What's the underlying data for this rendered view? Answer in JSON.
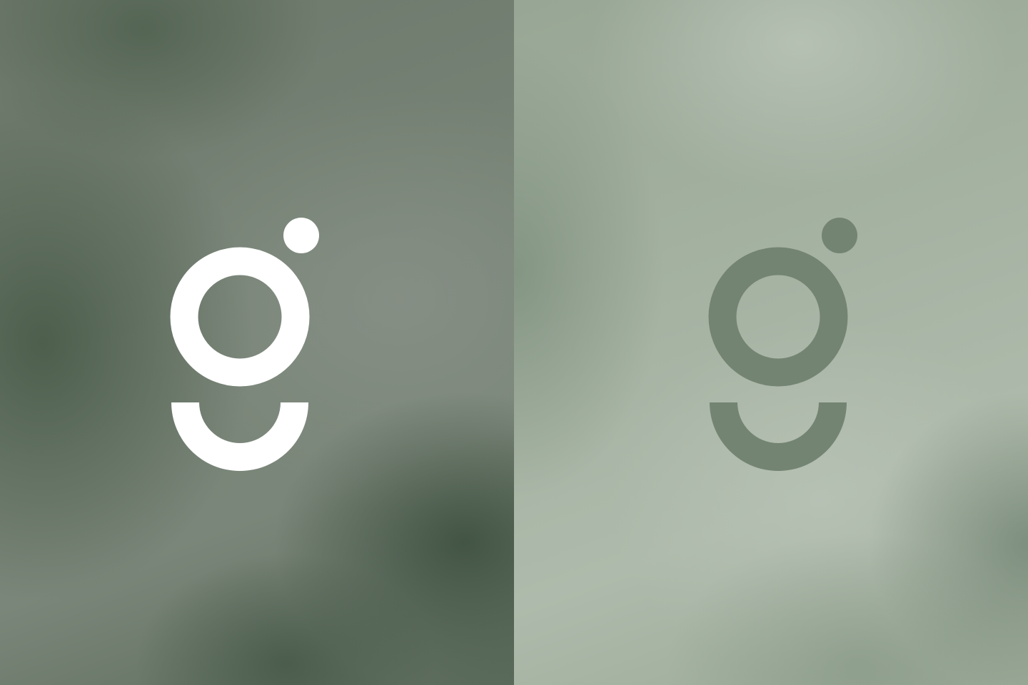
{
  "panels": [
    {
      "name": "dark-variant",
      "logo": {
        "glyph": "g",
        "color": "#ffffff"
      },
      "background_color": "#76826f"
    },
    {
      "name": "light-variant",
      "logo": {
        "glyph": "g",
        "color": "#738473"
      },
      "background_color": "#a8b4a5"
    }
  ]
}
